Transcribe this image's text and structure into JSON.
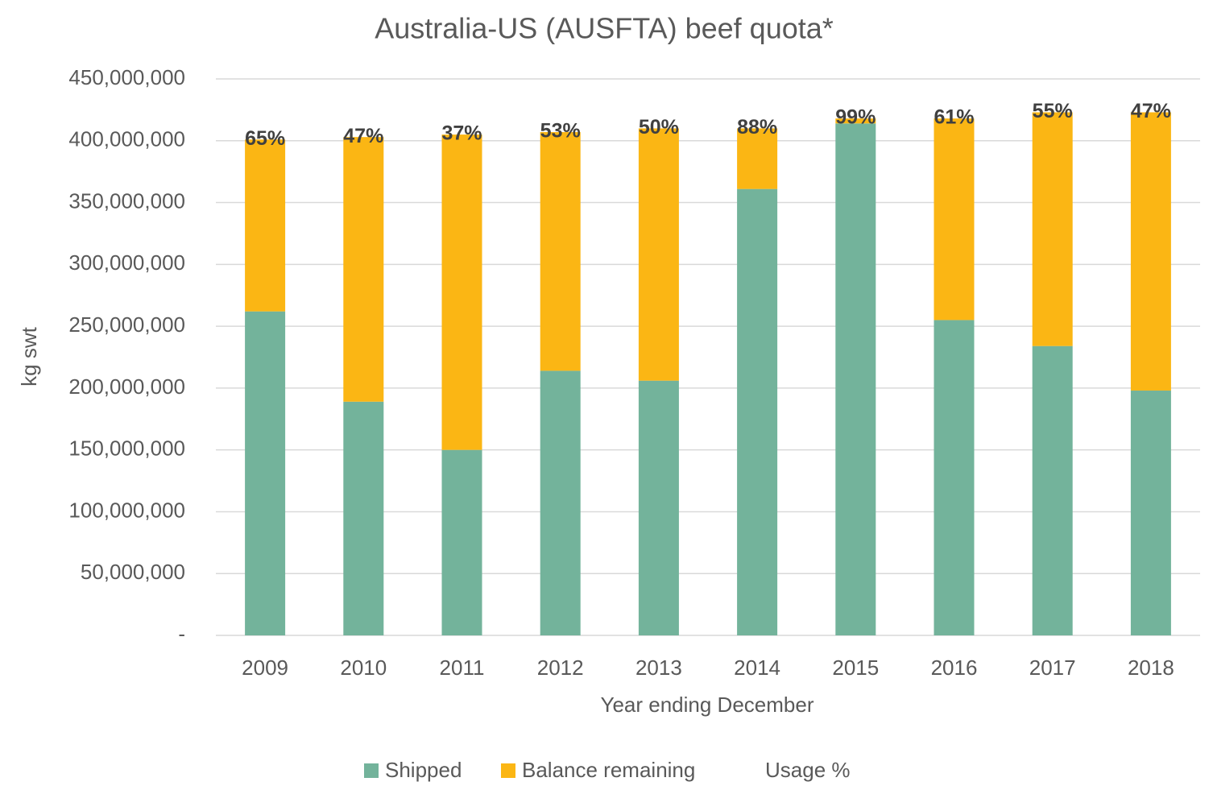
{
  "chart_data": {
    "type": "bar",
    "stacked": true,
    "title": "Australia-US (AUSFTA) beef quota*",
    "x_label": "Year ending December",
    "y_label": "kg swt",
    "categories": [
      "2009",
      "2010",
      "2011",
      "2012",
      "2013",
      "2014",
      "2015",
      "2016",
      "2017",
      "2018"
    ],
    "series": [
      {
        "name": "Shipped",
        "color": "#73b39b",
        "values": [
          262000000,
          189000000,
          150000000,
          214000000,
          206000000,
          361000000,
          414000000,
          255000000,
          234000000,
          198000000
        ]
      },
      {
        "name": "Balance remaining",
        "color": "#fbb614",
        "values": [
          139000000,
          214000000,
          255000000,
          193000000,
          204000000,
          49000000,
          4000000,
          163000000,
          189000000,
          225000000
        ]
      },
      {
        "name": "Usage %",
        "values": [
          65,
          47,
          37,
          53,
          50,
          88,
          99,
          61,
          55,
          47
        ],
        "value_labels": [
          "65%",
          "47%",
          "37%",
          "53%",
          "50%",
          "88%",
          "99%",
          "61%",
          "55%",
          "47%"
        ]
      }
    ],
    "ylim": [
      0,
      450000000
    ],
    "yticks": [
      {
        "value": 0,
        "label": "-"
      },
      {
        "value": 50000000,
        "label": "50,000,000"
      },
      {
        "value": 100000000,
        "label": "100,000,000"
      },
      {
        "value": 150000000,
        "label": "150,000,000"
      },
      {
        "value": 200000000,
        "label": "200,000,000"
      },
      {
        "value": 250000000,
        "label": "250,000,000"
      },
      {
        "value": 300000000,
        "label": "300,000,000"
      },
      {
        "value": 350000000,
        "label": "350,000,000"
      },
      {
        "value": 400000000,
        "label": "400,000,000"
      },
      {
        "value": 450000000,
        "label": "450,000,000"
      }
    ],
    "grid": true,
    "legend": "bottom"
  }
}
